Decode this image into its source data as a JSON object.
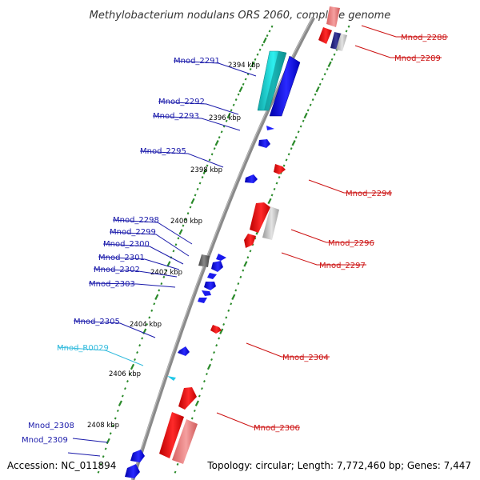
{
  "title": "Methylobacterium nodulans ORS 2060, complete genome",
  "footer": {
    "accession": "Accession: NC_011894",
    "topology": "Topology: circular; Length: 7,772,460 bp; Genes: 7,447"
  },
  "colors": {
    "backbone": "#808080",
    "ticks": "#2a8a2a",
    "left_labels": "#1a1aaa",
    "right_labels": "#cc1111",
    "rna_label": "#33bbdd"
  },
  "kbp_labels": [
    "2394 kbp",
    "2396 kbp",
    "2398 kbp",
    "2400 kbp",
    "2402 kbp",
    "2404 kbp",
    "2406 kbp",
    "2408 kbp"
  ],
  "left_genes": [
    "Mnod_2291",
    "Mnod_2292",
    "Mnod_2293",
    "Mnod_2295",
    "Mnod_2298",
    "Mnod_2299",
    "Mnod_2300",
    "Mnod_2301",
    "Mnod_2302",
    "Mnod_2303",
    "Mnod_2305",
    "Mnod_R0029",
    "Mnod_2308",
    "Mnod_2309"
  ],
  "right_genes": [
    "Mnod_2288",
    "Mnod_2289",
    "Mnod_2294",
    "Mnod_2296",
    "Mnod_2297",
    "Mnod_2304",
    "Mnod_2306"
  ]
}
